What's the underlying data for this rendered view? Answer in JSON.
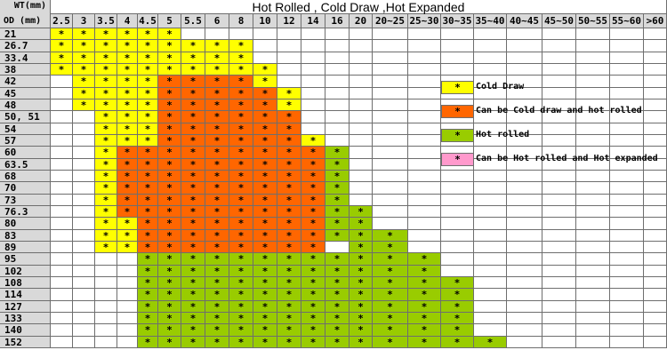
{
  "title": "Hot Rolled , Cold Draw ,Hot Expanded",
  "corner": {
    "wt_label": "WT(mm)",
    "od_label": "OD (mm)"
  },
  "wt_columns": [
    "2.5",
    "3",
    "3.5",
    "4",
    "4.5",
    "5",
    "5.5",
    "6",
    "8",
    "10",
    "12",
    "14",
    "16",
    "20",
    "20~25",
    "25~30",
    "30~35",
    "35~40",
    "40~45",
    "45~50",
    "50~55",
    "55~60",
    ">60"
  ],
  "od_rows": [
    "21",
    "26.7",
    "33.4",
    "38",
    "42",
    "45",
    "48",
    "50, 51",
    "54",
    "57",
    "60",
    "63.5",
    "68",
    "70",
    "73",
    "76.3",
    "80",
    "83",
    "89",
    "95",
    "102",
    "108",
    "114",
    "127",
    "133",
    "140",
    "152"
  ],
  "colors": {
    "C": "#ffff00",
    "O": "#ff6600",
    "G": "#99cc00",
    "P": "#ff99cc",
    "header_bg": "#d9d9d9"
  },
  "mark_symbol": "*",
  "legend": [
    {
      "key": "C",
      "label": "Cold Draw"
    },
    {
      "key": "O",
      "label": "Can be Cold draw and hot rolled"
    },
    {
      "key": "G",
      "label": "Hot rolled"
    },
    {
      "key": "P",
      "label": "Can be Hot rolled and Hot expanded"
    }
  ],
  "grid": [
    "CCCCCC.................",
    "CCCCCCCCC..............",
    "CCCCCCCCC..............",
    "CCCCCCCCCC.............",
    ".CCCCOOOOC.............",
    ".CCCCOOOOOC............",
    ".CCCCOOOOOC............",
    "..CCCOOOOOO............",
    "..CCCOOOOOO............",
    "..CCCOOOOOOC...........",
    "..COOOOOOOOOG..........",
    "..COOOOOOOOOG..........",
    "..COOOOOOOOOG..........",
    "..COOOOOOOOOG..........",
    "..COOOOOOOOOG..........",
    "..COOOOOOOOOGG.........",
    "..CCOOOOOOOOGG.........",
    "..CCOOOOOOOOGGG........",
    "..CCOOOOOOOO.GG........",
    "....GGGGGGGGGGGG.......",
    "....GGGGGGGGGGGG.......",
    "....GGGGGGGGGGGGG......",
    "....GGGGGGGGGGGGG......",
    "....GGGGGGGGGGGGG......",
    "....GGGGGGGGGGGGG......",
    "....GGGGGGGGGGGGG......",
    "....GGGGGGGGGGGGGG....."
  ]
}
